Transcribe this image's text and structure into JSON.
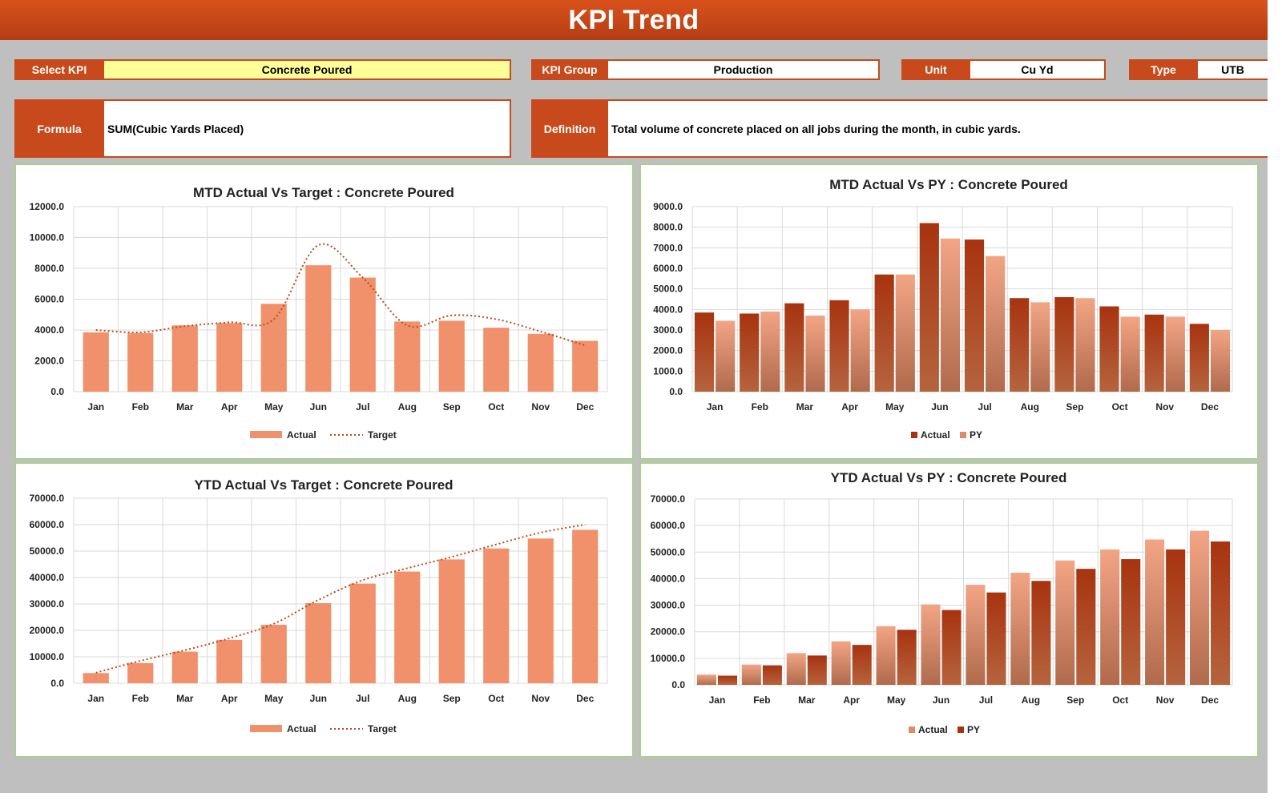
{
  "header": {
    "title": "KPI Trend"
  },
  "selectors": {
    "select_kpi": {
      "label": "Select KPI",
      "value": "Concrete Poured"
    },
    "kpi_group": {
      "label": "KPI Group",
      "value": "Production"
    },
    "unit": {
      "label": "Unit",
      "value": "Cu Yd"
    },
    "type": {
      "label": "Type",
      "value": "UTB"
    },
    "formula": {
      "label": "Formula",
      "value": "SUM(Cubic Yards Placed)"
    },
    "definition": {
      "label": "Definition",
      "value": "Total volume of concrete placed on all jobs during the month, in cubic yards."
    }
  },
  "colors": {
    "header": "#c84a1c",
    "bar_light": "#f0916b",
    "bar_dark": "#a83a14",
    "target_line": "#b84a1e",
    "panel_border": "#a9cf8f",
    "select_highlight": "#ffff99"
  },
  "chart_data": [
    {
      "type": "bar",
      "title": "MTD Actual Vs Target : Concrete Poured",
      "categories": [
        "Jan",
        "Feb",
        "Mar",
        "Apr",
        "May",
        "Jun",
        "Jul",
        "Aug",
        "Sep",
        "Oct",
        "Nov",
        "Dec"
      ],
      "ylim": [
        0,
        12000
      ],
      "yticks": [
        "0.0",
        "2000.0",
        "4000.0",
        "6000.0",
        "8000.0",
        "10000.0",
        "12000.0"
      ],
      "series": [
        {
          "name": "Actual",
          "kind": "bar",
          "values": [
            3850,
            3800,
            4300,
            4450,
            5700,
            8200,
            7400,
            4550,
            4600,
            4150,
            3750,
            3300
          ]
        },
        {
          "name": "Target",
          "kind": "line",
          "values": [
            4000,
            3850,
            4250,
            4500,
            4700,
            9500,
            7400,
            4300,
            4950,
            4700,
            3900,
            3000
          ]
        }
      ],
      "legend": "bottom"
    },
    {
      "type": "bar",
      "title": "MTD Actual Vs PY : Concrete Poured",
      "categories": [
        "Jan",
        "Feb",
        "Mar",
        "Apr",
        "May",
        "Jun",
        "Jul",
        "Aug",
        "Sep",
        "Oct",
        "Nov",
        "Dec"
      ],
      "ylim": [
        0,
        9000
      ],
      "yticks": [
        "0.0",
        "1000.0",
        "2000.0",
        "3000.0",
        "4000.0",
        "5000.0",
        "6000.0",
        "7000.0",
        "8000.0",
        "9000.0"
      ],
      "series": [
        {
          "name": "Actual",
          "kind": "bar",
          "values": [
            3850,
            3800,
            4300,
            4450,
            5700,
            8200,
            7400,
            4550,
            4600,
            4150,
            3750,
            3300
          ]
        },
        {
          "name": "PY",
          "kind": "bar",
          "values": [
            3450,
            3900,
            3700,
            4000,
            5700,
            7450,
            6600,
            4350,
            4550,
            3650,
            3650,
            3000
          ]
        }
      ],
      "legend": "bottom"
    },
    {
      "type": "bar",
      "title": "YTD Actual Vs Target : Concrete Poured",
      "categories": [
        "Jan",
        "Feb",
        "Mar",
        "Apr",
        "May",
        "Jun",
        "Jul",
        "Aug",
        "Sep",
        "Oct",
        "Nov",
        "Dec"
      ],
      "ylim": [
        0,
        70000
      ],
      "yticks": [
        "0.0",
        "10000.0",
        "20000.0",
        "30000.0",
        "40000.0",
        "50000.0",
        "60000.0",
        "70000.0"
      ],
      "series": [
        {
          "name": "Actual",
          "kind": "bar",
          "values": [
            3850,
            7650,
            11950,
            16400,
            22100,
            30300,
            37700,
            42250,
            46850,
            51000,
            54750,
            58050
          ]
        },
        {
          "name": "Target",
          "kind": "line",
          "values": [
            4000,
            8500,
            12500,
            17000,
            22500,
            31500,
            39000,
            43500,
            47800,
            52500,
            57000,
            60000
          ]
        }
      ],
      "legend": "bottom"
    },
    {
      "type": "bar",
      "title": "YTD Actual Vs PY : Concrete Poured",
      "categories": [
        "Jan",
        "Feb",
        "Mar",
        "Apr",
        "May",
        "Jun",
        "Jul",
        "Aug",
        "Sep",
        "Oct",
        "Nov",
        "Dec"
      ],
      "ylim": [
        0,
        70000
      ],
      "yticks": [
        "0.0",
        "10000.0",
        "20000.0",
        "30000.0",
        "40000.0",
        "50000.0",
        "60000.0",
        "70000.0"
      ],
      "series": [
        {
          "name": "Actual",
          "kind": "bar",
          "values": [
            3850,
            7650,
            11950,
            16400,
            22100,
            30300,
            37700,
            42250,
            46850,
            51000,
            54750,
            58050
          ]
        },
        {
          "name": "PY",
          "kind": "bar",
          "values": [
            3450,
            7350,
            11050,
            15050,
            20750,
            28200,
            34800,
            39150,
            43700,
            47350,
            51000,
            54000
          ]
        }
      ],
      "legend": "bottom"
    }
  ]
}
